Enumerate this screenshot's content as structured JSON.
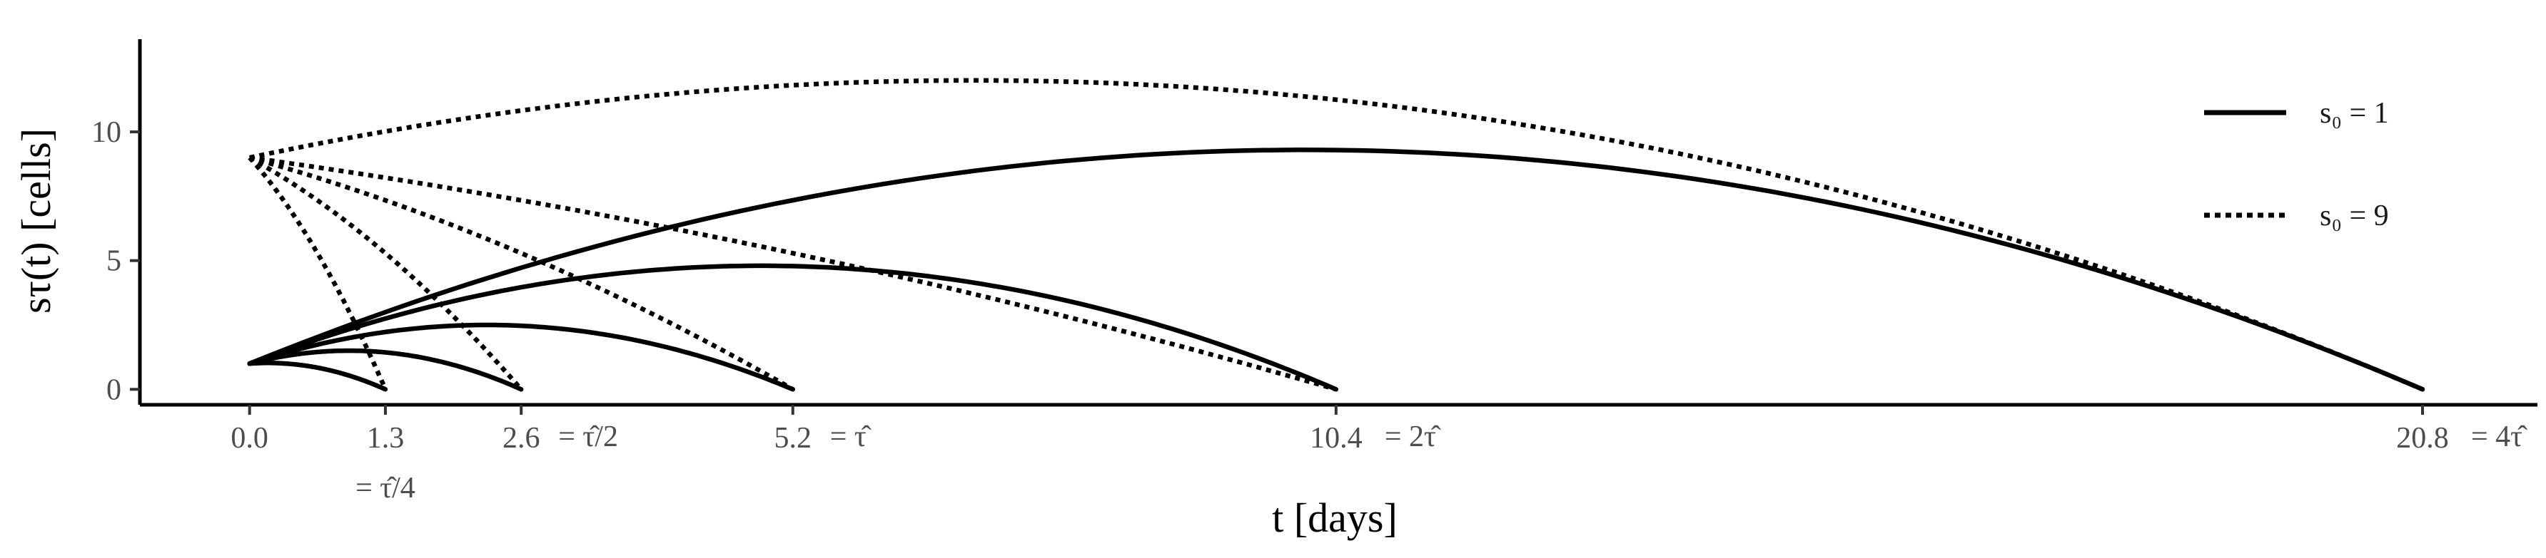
{
  "chart_data": {
    "type": "line",
    "xlabel": "t [days]",
    "ylabel": "sτ(t) [cells]",
    "xlim": [
      -1.05,
      21.9
    ],
    "ylim": [
      -0.6,
      13.6
    ],
    "grid": false,
    "legend": "right",
    "x_ticks": [
      {
        "value": 0.0,
        "label": "0.0",
        "annot": ""
      },
      {
        "value": 1.3,
        "label": "1.3",
        "annot": "= τ̂/4"
      },
      {
        "value": 2.6,
        "label": "2.6",
        "annot": "= τ̂/2"
      },
      {
        "value": 5.2,
        "label": "5.2",
        "annot": "= τ̂"
      },
      {
        "value": 10.4,
        "label": "10.4",
        "annot": "= 2τ̂"
      },
      {
        "value": 20.8,
        "label": "20.8",
        "annot": "= 4τ̂"
      }
    ],
    "y_ticks": [
      {
        "value": 0,
        "label": "0"
      },
      {
        "value": 5,
        "label": "5"
      },
      {
        "value": 10,
        "label": "10"
      }
    ],
    "series": [
      {
        "name": "s₀ = 1",
        "linestyle": "solid",
        "color": "#000000",
        "curves": [
          {
            "tau": 1.3,
            "s0": 1,
            "peak_t": 0.25,
            "peak": 1.02
          },
          {
            "tau": 2.6,
            "s0": 1,
            "peak_t": 0.9,
            "peak": 1.5
          },
          {
            "tau": 5.2,
            "s0": 1,
            "peak_t": 2.3,
            "peak": 2.5
          },
          {
            "tau": 10.4,
            "s0": 1,
            "peak_t": 4.9,
            "peak": 4.8
          },
          {
            "tau": 20.8,
            "s0": 1,
            "peak_t": 10.0,
            "peak": 9.3
          }
        ]
      },
      {
        "name": "s₀ = 9",
        "linestyle": "dotted",
        "color": "#000000",
        "curves": [
          {
            "tau": 1.3,
            "s0": 9,
            "peak_t": 0.0,
            "peak": 9.0
          },
          {
            "tau": 2.6,
            "s0": 9,
            "peak_t": 0.0,
            "peak": 9.0
          },
          {
            "tau": 5.2,
            "s0": 9,
            "peak_t": 0.0,
            "peak": 9.0
          },
          {
            "tau": 10.4,
            "s0": 9,
            "peak_t": 0.0,
            "peak": 9.0
          },
          {
            "tau": 20.8,
            "s0": 9,
            "peak_t": 7.0,
            "peak": 12.0
          }
        ]
      }
    ]
  }
}
